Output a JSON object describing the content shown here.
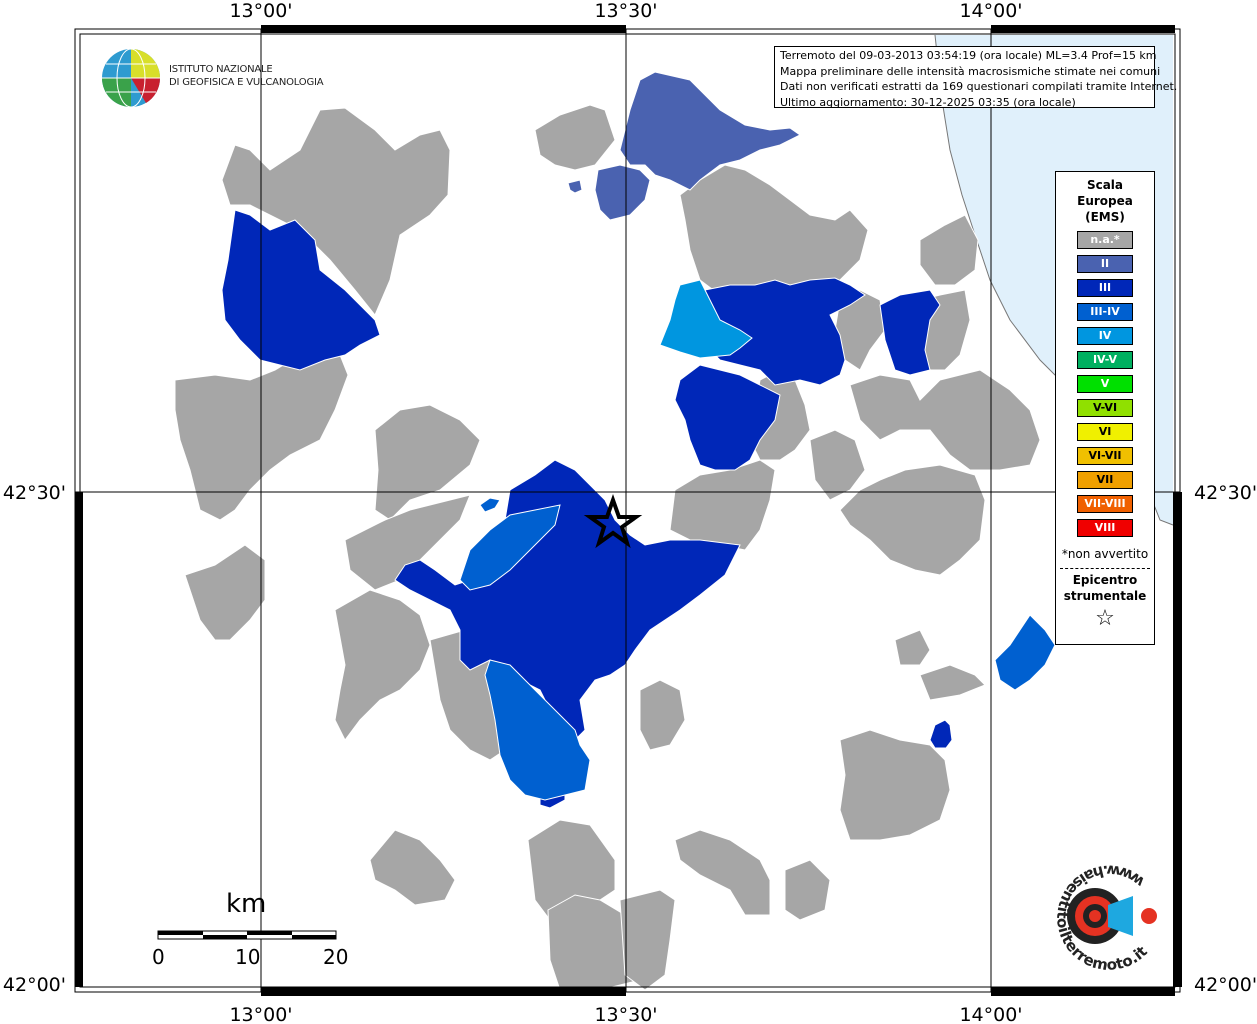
{
  "map": {
    "top_labels": [
      "13°00'",
      "13°30'",
      "14°00'"
    ],
    "bottom_labels": [
      "13°00'",
      "13°30'",
      "14°00'"
    ],
    "left_labels": [
      "42°30'",
      "42°00'"
    ],
    "right_labels": [
      "42°30'",
      "42°00'"
    ]
  },
  "logo": {
    "line1": "ISTITUTO NAZIONALE",
    "line2": "DI GEOFISICA E VULCANOLOGIA"
  },
  "info": {
    "line1": "Terremoto del 09-03-2013 03:54:19 (ora locale) ML=3.4 Prof=15 km",
    "line2": "Mappa preliminare delle intensità macrosismiche stimate nei comuni",
    "line3": "Dati non verificati estratti da 169 questionari compilati tramite Internet.",
    "line4": "Ultimo aggiornamento: 30-12-2025 03:35 (ora locale)"
  },
  "legend": {
    "title1": "Scala",
    "title2": "Europea",
    "title3": "(EMS)",
    "items": [
      {
        "label": "n.a.*",
        "color": "#a6a6a6"
      },
      {
        "label": "II",
        "color": "#4a62b0"
      },
      {
        "label": "III",
        "color": "#0027b8"
      },
      {
        "label": "III-IV",
        "color": "#0060d0"
      },
      {
        "label": "IV",
        "color": "#0096e0"
      },
      {
        "label": "IV-V",
        "color": "#00b060"
      },
      {
        "label": "V",
        "color": "#00e000"
      },
      {
        "label": "V-VI",
        "color": "#90e000"
      },
      {
        "label": "VI",
        "color": "#f0f000"
      },
      {
        "label": "VI-VII",
        "color": "#f0c000"
      },
      {
        "label": "VII",
        "color": "#f0a000"
      },
      {
        "label": "VII-VIII",
        "color": "#f06000"
      },
      {
        "label": "VIII",
        "color": "#f00000"
      }
    ],
    "note": "*non avvertito",
    "epi1": "Epicentro",
    "epi2": "strumentale",
    "star": "☆"
  },
  "scalebar": {
    "unit": "km",
    "labels": [
      "0",
      "10",
      "20"
    ]
  },
  "colors": {
    "na": "#a6a6a6",
    "ii": "#4a62b0",
    "iii": "#0027b8",
    "iii_iv": "#0060d0",
    "iv": "#0096e0",
    "sea": "#e0f0fb"
  },
  "brand": {
    "text": "www.haisentitoilterremoto.it",
    "accent": "#e53222"
  }
}
